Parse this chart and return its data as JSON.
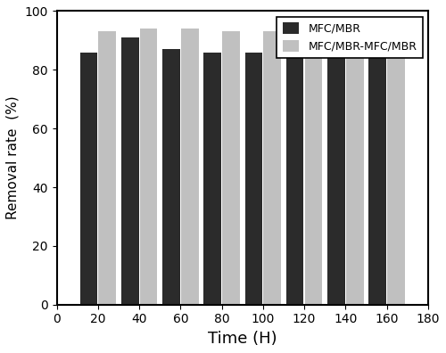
{
  "time_points": [
    20,
    40,
    60,
    80,
    100,
    120,
    140,
    160
  ],
  "mfc_mbr": [
    86,
    91,
    87,
    86,
    86,
    86,
    85.5,
    85.5
  ],
  "mfc_mbr_tandem": [
    93,
    94,
    94,
    93,
    93,
    91.5,
    91.5,
    92
  ],
  "bar_color_1": "#2b2b2b",
  "bar_color_2": "#c0c0c0",
  "label_1": "MFC/MBR",
  "label_2": "MFC/MBR-MFC/MBR",
  "xlabel": "Time (H)",
  "ylabel": "Removal rate  (%)",
  "xlim": [
    0,
    180
  ],
  "ylim": [
    0,
    100
  ],
  "xticks": [
    0,
    20,
    40,
    60,
    80,
    100,
    120,
    140,
    160,
    180
  ],
  "yticks": [
    0,
    20,
    40,
    60,
    80,
    100
  ],
  "bar_width": 8.5,
  "bar_gap": 0.5,
  "figsize": [
    5.0,
    3.96
  ],
  "dpi": 100
}
